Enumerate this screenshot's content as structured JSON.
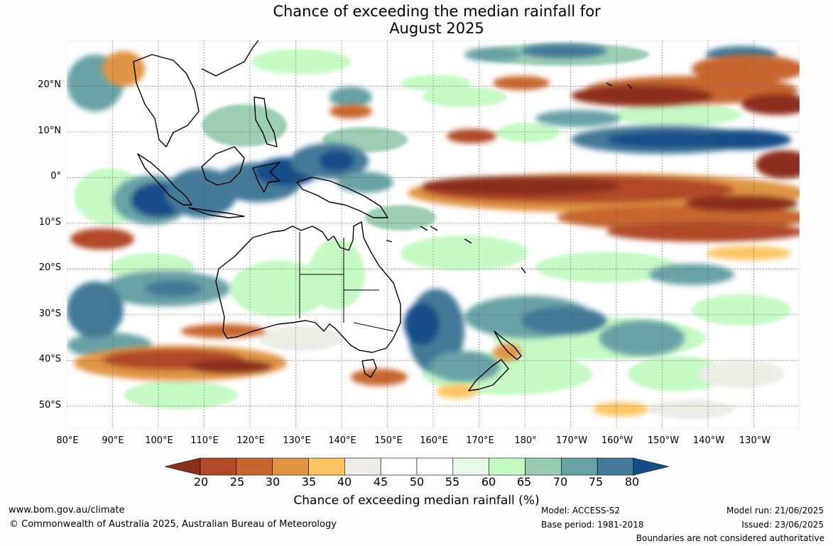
{
  "title": {
    "line1": "Chance of exceeding the median rainfall for",
    "line2": "August 2025"
  },
  "map": {
    "lat_labels": [
      "20°N",
      "10°N",
      "0°",
      "10°S",
      "20°S",
      "30°S",
      "40°S",
      "50°S"
    ],
    "lon_labels": [
      "80°E",
      "90°E",
      "100°E",
      "110°E",
      "120°E",
      "130°E",
      "140°E",
      "150°E",
      "160°E",
      "170°E",
      "180°",
      "170°W",
      "160°W",
      "150°W",
      "140°W",
      "130°W"
    ],
    "lat_range": [
      -55,
      30
    ],
    "lon_range": [
      80,
      240
    ]
  },
  "legend": {
    "title": "Chance of exceeding median rainfall (%)",
    "ticks": [
      "20",
      "25",
      "30",
      "35",
      "40",
      "45",
      "50",
      "55",
      "60",
      "65",
      "70",
      "75",
      "80"
    ],
    "colors": [
      "#8c2e1d",
      "#b14a28",
      "#c7662e",
      "#e09545",
      "#fec564",
      "#ecebe6",
      "#ffffff",
      "#ffffff",
      "#e7f9e8",
      "#c4f9c4",
      "#98cbb1",
      "#67a2a5",
      "#427a97",
      "#134e8a"
    ]
  },
  "footer": {
    "website": "www.bom.gov.au/climate",
    "copyright": "© Commonwealth of Australia 2025, Australian Bureau of Meteorology",
    "model": "Model: ACCESS-S2",
    "base_period": "Base period: 1981-2018",
    "model_run": "Model run: 21/06/2025",
    "issued": "Issued: 23/06/2025",
    "boundaries": "Boundaries are not considered authoritative"
  }
}
